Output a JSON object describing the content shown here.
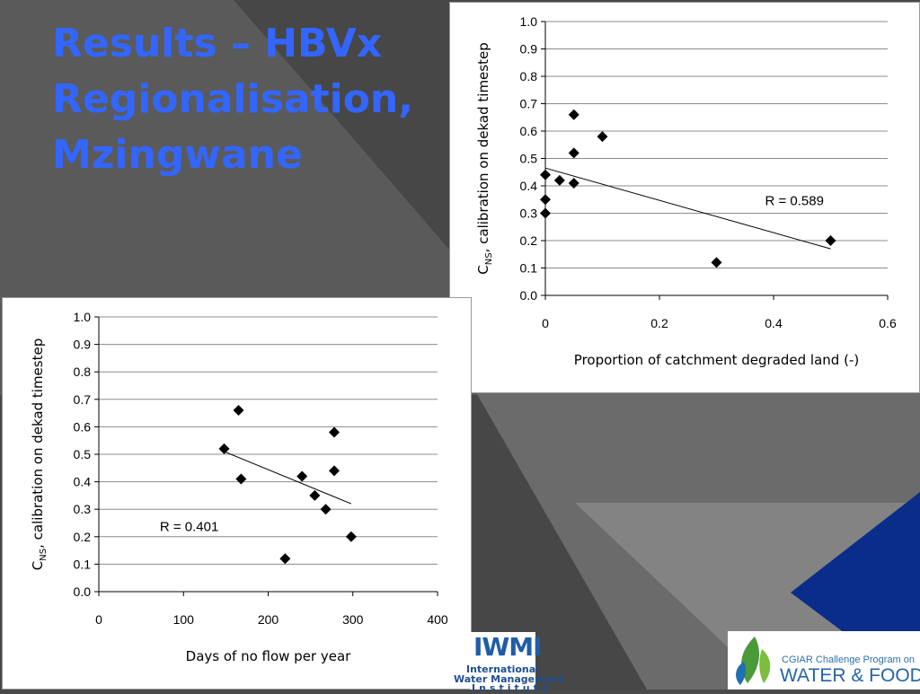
{
  "slide": {
    "title_lines": [
      "Results – HBVx",
      "Regionalisation,",
      "Mzingwane"
    ],
    "colors": {
      "title": "#3366ff",
      "background": "#4a4a4a",
      "accent": "#0a2d8a"
    }
  },
  "logos": {
    "iwmi": {
      "big": "IWMI",
      "line1": "International",
      "line2": "Water Management",
      "line3": "Institute"
    },
    "cgiar": {
      "line1": "CGIAR Challenge Program on",
      "line2": "WATER & FOOD"
    }
  },
  "chart_data": [
    {
      "type": "scatter",
      "title": "",
      "xlabel": "Proportion of catchment degraded land (-)",
      "ylabel_sub": "NS",
      "ylabel_rest": ", calibration on dekad timestep",
      "xlim": [
        0,
        0.6
      ],
      "ylim": [
        0,
        1.0
      ],
      "xticks": [
        "0",
        "0.2",
        "0.4",
        "0.6"
      ],
      "yticks": [
        "0.0",
        "0.1",
        "0.2",
        "0.3",
        "0.4",
        "0.5",
        "0.6",
        "0.7",
        "0.8",
        "0.9",
        "1.0"
      ],
      "grid": "horizontal",
      "points": [
        [
          0.0,
          0.44
        ],
        [
          0.0,
          0.35
        ],
        [
          0.0,
          0.3
        ],
        [
          0.025,
          0.42
        ],
        [
          0.05,
          0.66
        ],
        [
          0.05,
          0.52
        ],
        [
          0.05,
          0.41
        ],
        [
          0.1,
          0.58
        ],
        [
          0.3,
          0.12
        ],
        [
          0.5,
          0.2
        ]
      ],
      "trendline": [
        [
          0.0,
          0.465
        ],
        [
          0.5,
          0.17
        ]
      ],
      "annotation": {
        "text": "R = 0.589",
        "x": 0.385,
        "y": 0.33
      }
    },
    {
      "type": "scatter",
      "title": "",
      "xlabel": "Days of no flow per year",
      "ylabel_sub": "NS",
      "ylabel_rest": ", calibration on dekad timestep",
      "xlim": [
        0,
        400
      ],
      "ylim": [
        0,
        1.0
      ],
      "xticks": [
        "0",
        "100",
        "200",
        "300",
        "400"
      ],
      "yticks": [
        "0.0",
        "0.1",
        "0.2",
        "0.3",
        "0.4",
        "0.5",
        "0.6",
        "0.7",
        "0.8",
        "0.9",
        "1.0"
      ],
      "grid": "horizontal",
      "points": [
        [
          148,
          0.52
        ],
        [
          165,
          0.66
        ],
        [
          168,
          0.41
        ],
        [
          220,
          0.12
        ],
        [
          240,
          0.42
        ],
        [
          255,
          0.35
        ],
        [
          268,
          0.3
        ],
        [
          278,
          0.58
        ],
        [
          278,
          0.44
        ],
        [
          298,
          0.2
        ]
      ],
      "trendline": [
        [
          148,
          0.51
        ],
        [
          298,
          0.32
        ]
      ],
      "annotation": {
        "text": "R = 0.401",
        "x": 72,
        "y": 0.22
      }
    }
  ]
}
